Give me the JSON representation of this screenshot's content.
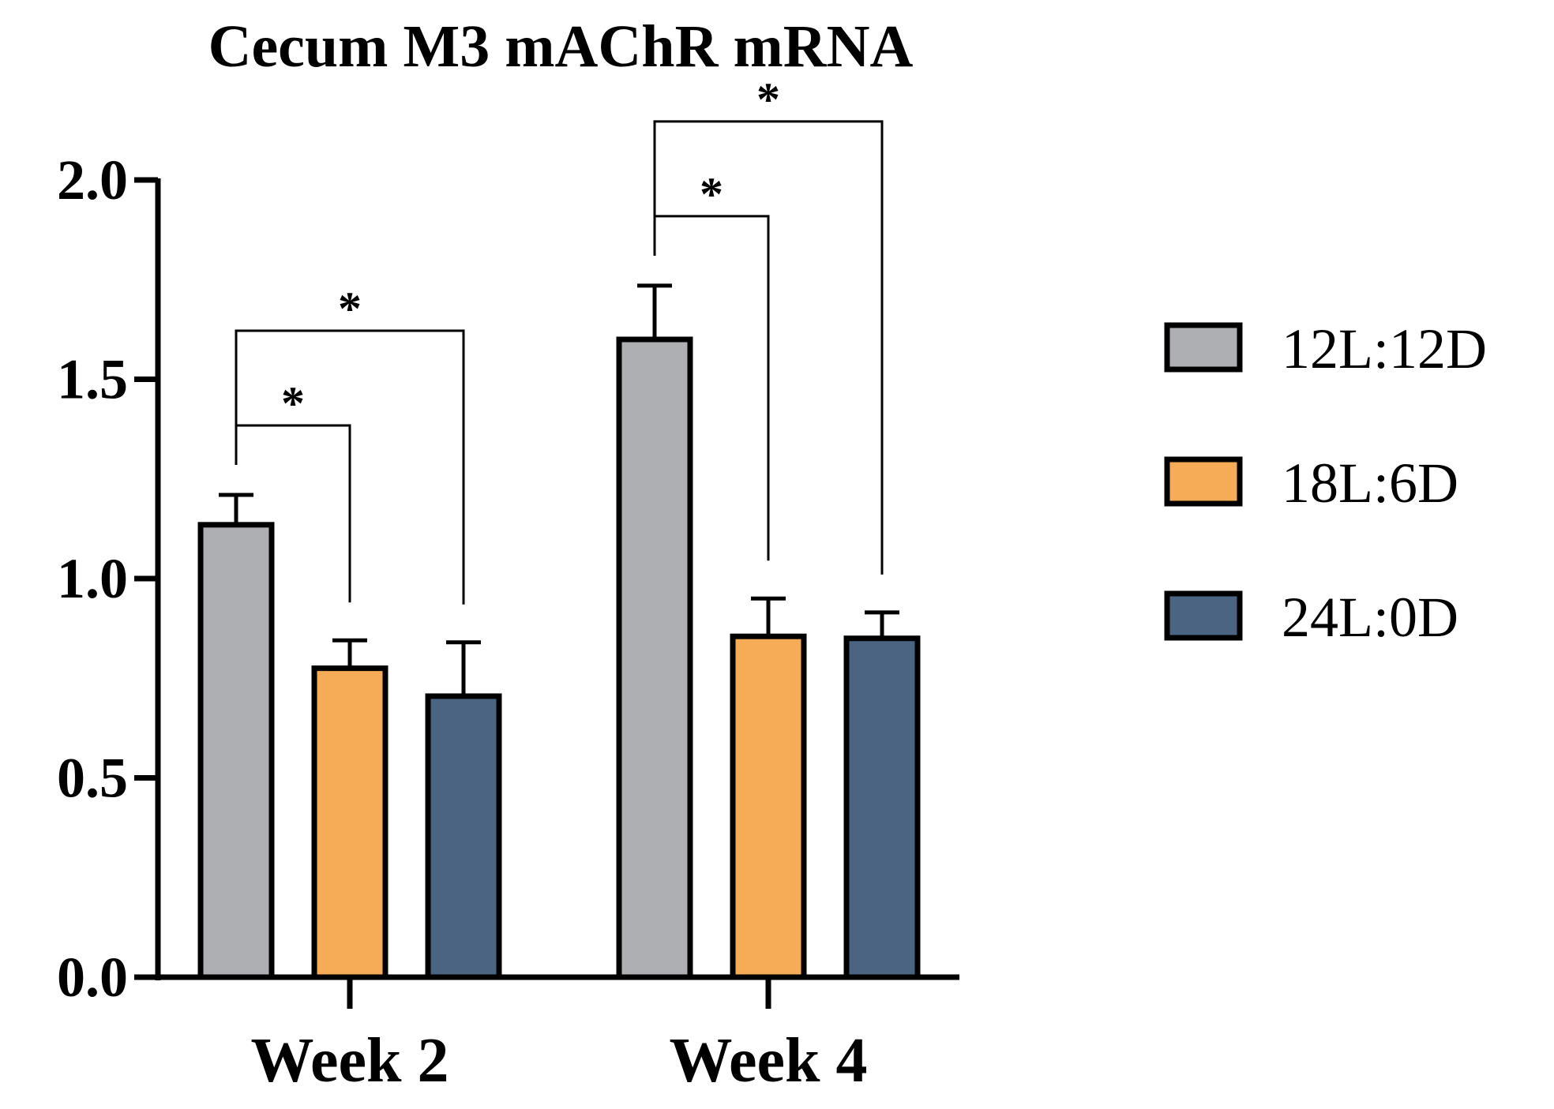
{
  "chart_data": {
    "type": "bar",
    "title": "Cecum M3 mAChR mRNA",
    "xlabel": "",
    "ylabel": "",
    "ylim": [
      0,
      2.0
    ],
    "yticks": [
      "0.0",
      "0.5",
      "1.0",
      "1.5",
      "2.0"
    ],
    "ytick_values": [
      0,
      0.5,
      1.0,
      1.5,
      2.0
    ],
    "categories": [
      "Week 2",
      "Week 4"
    ],
    "series": [
      {
        "name": "12L:12D",
        "color": "#aeafb3",
        "values": [
          1.135,
          1.6
        ],
        "errors": [
          0.075,
          0.135
        ]
      },
      {
        "name": "18L:6D",
        "color": "#f6ab56",
        "values": [
          0.775,
          0.855
        ],
        "errors": [
          0.07,
          0.095
        ]
      },
      {
        "name": "24L:0D",
        "color": "#4a6482",
        "values": [
          0.705,
          0.85
        ],
        "errors": [
          0.135,
          0.065
        ]
      }
    ],
    "significance": [
      {
        "category": 0,
        "from_series": 0,
        "to_series": 1,
        "label": "*"
      },
      {
        "category": 0,
        "from_series": 0,
        "to_series": 2,
        "label": "*"
      },
      {
        "category": 1,
        "from_series": 0,
        "to_series": 1,
        "label": "*"
      },
      {
        "category": 1,
        "from_series": 0,
        "to_series": 2,
        "label": "*"
      }
    ],
    "legend_position": "right",
    "grid": false
  }
}
